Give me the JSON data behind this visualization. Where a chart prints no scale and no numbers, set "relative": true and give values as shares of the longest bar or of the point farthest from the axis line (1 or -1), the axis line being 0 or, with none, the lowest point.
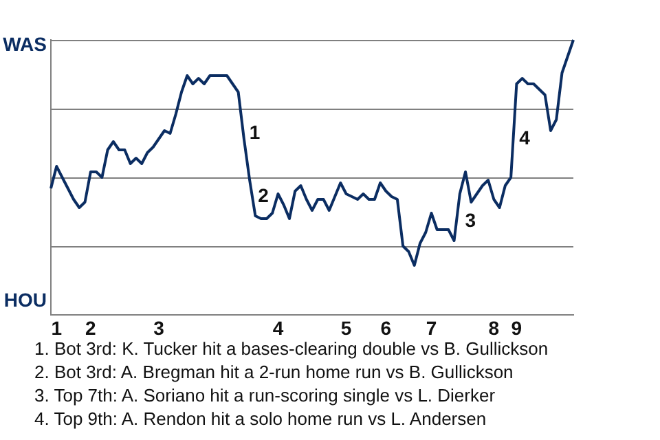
{
  "chart_data": {
    "type": "line",
    "color": "#0b2d62",
    "relative": true,
    "categories": [
      null,
      "1",
      null,
      null,
      null,
      null,
      null,
      "2",
      null,
      null,
      null,
      null,
      null,
      null,
      null,
      null,
      null,
      null,
      null,
      "3",
      null,
      null,
      null,
      null,
      null,
      null,
      null,
      null,
      null,
      null,
      null,
      null,
      null,
      null,
      null,
      null,
      null,
      null,
      null,
      null,
      "4",
      null,
      null,
      null,
      null,
      null,
      null,
      null,
      null,
      null,
      null,
      null,
      "5",
      null,
      null,
      null,
      null,
      null,
      null,
      "6",
      null,
      null,
      null,
      null,
      null,
      null,
      null,
      "7",
      null,
      null,
      null,
      null,
      null,
      null,
      null,
      null,
      null,
      null,
      "8",
      null,
      null,
      null,
      "9",
      null,
      null,
      null,
      null,
      null,
      null,
      null,
      null,
      null,
      null
    ],
    "values": [
      0.46,
      0.54,
      0.5,
      0.46,
      0.42,
      0.39,
      0.41,
      0.52,
      0.52,
      0.5,
      0.6,
      0.63,
      0.6,
      0.6,
      0.55,
      0.57,
      0.55,
      0.59,
      0.61,
      0.64,
      0.67,
      0.66,
      0.73,
      0.81,
      0.87,
      0.84,
      0.86,
      0.84,
      0.87,
      0.87,
      0.87,
      0.87,
      0.84,
      0.81,
      0.64,
      0.49,
      0.36,
      0.35,
      0.35,
      0.37,
      0.44,
      0.4,
      0.35,
      0.45,
      0.47,
      0.42,
      0.38,
      0.42,
      0.42,
      0.38,
      0.43,
      0.48,
      0.44,
      0.43,
      0.42,
      0.44,
      0.42,
      0.42,
      0.48,
      0.45,
      0.43,
      0.42,
      0.25,
      0.23,
      0.18,
      0.26,
      0.3,
      0.37,
      0.31,
      0.31,
      0.31,
      0.27,
      0.44,
      0.52,
      0.41,
      0.44,
      0.47,
      0.49,
      0.42,
      0.39,
      0.47,
      0.5,
      0.84,
      0.86,
      0.84,
      0.84,
      0.82,
      0.8,
      0.67,
      0.71,
      0.88,
      0.94,
      1.0
    ],
    "ref_lines": [
      {
        "axis": "y",
        "value": 0.25,
        "color": "#808080"
      },
      {
        "axis": "y",
        "value": 0.5,
        "color": "#808080"
      },
      {
        "axis": "y",
        "value": 0.75,
        "color": "#808080"
      },
      {
        "axis": "y",
        "value": 1,
        "color": "#808080"
      }
    ],
    "legend": false,
    "annotations": [
      "WAS",
      "HOU",
      "1",
      "2",
      "3",
      "4",
      "1. Bot 3rd: K. Tucker hit a bases-clearing double vs B. Gullickson",
      "2. Bot 3rd: A. Bregman hit a 2-run home run vs B. Gullickson",
      "3. Top 7th: A. Soriano hit a run-scoring single vs L. Dierker",
      "4. Top 9th: A. Rendon hit a solo home run vs L. Andersen"
    ]
  }
}
